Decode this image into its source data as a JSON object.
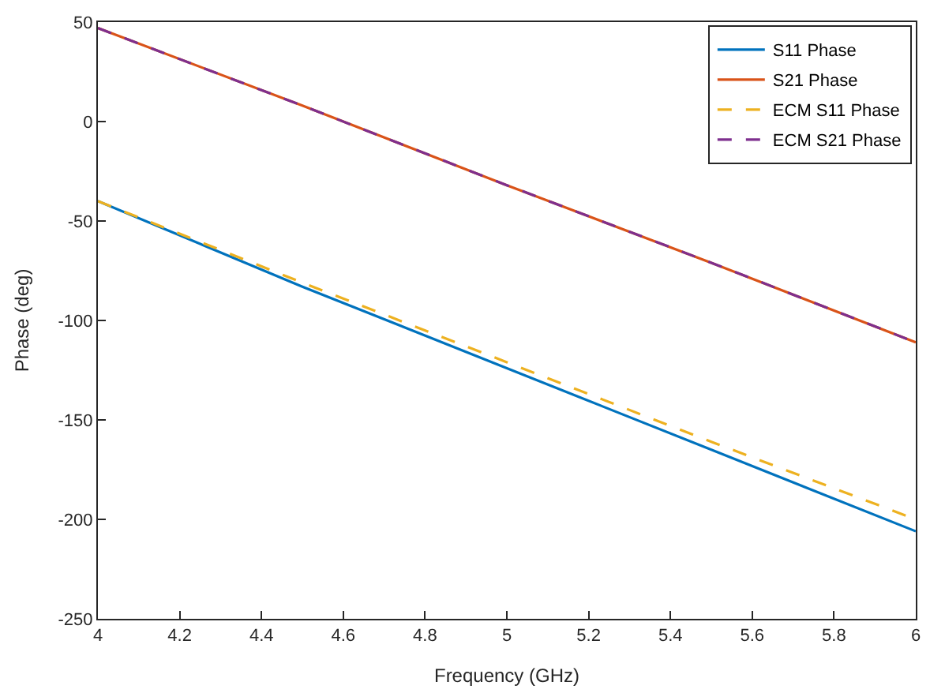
{
  "chart_data": {
    "type": "line",
    "xlabel": "Frequency (GHz)",
    "ylabel": "Phase (deg)",
    "xlim": [
      4,
      6
    ],
    "xticks": [
      4,
      4.2,
      4.4,
      4.6,
      4.8,
      5,
      5.2,
      5.4,
      5.6,
      5.8,
      6
    ],
    "ylim": [
      -250,
      50
    ],
    "yticks": [
      -250,
      -200,
      -150,
      -100,
      -50,
      0,
      50
    ],
    "x": [
      4,
      4.5,
      5,
      5.5,
      6
    ],
    "grid": false,
    "legend": "top right",
    "marker": "none",
    "series": [
      {
        "name": "S11 Phase",
        "color": "#0072bd",
        "line_style": "solid",
        "values": [
          -40,
          -83,
          -124,
          -165,
          -206
        ]
      },
      {
        "name": "S21 Phase",
        "color": "#d95319",
        "line_style": "solid",
        "values": [
          47,
          8,
          -32,
          -71,
          -111
        ]
      },
      {
        "name": "ECM S11 Phase",
        "color": "#edb120",
        "line_style": "dashed",
        "values": [
          -40,
          -81,
          -121,
          -161,
          -200
        ]
      },
      {
        "name": "ECM S21 Phase",
        "color": "#7e2f8e",
        "line_style": "dashed",
        "values": [
          47,
          8,
          -32,
          -71,
          -111
        ]
      }
    ]
  }
}
